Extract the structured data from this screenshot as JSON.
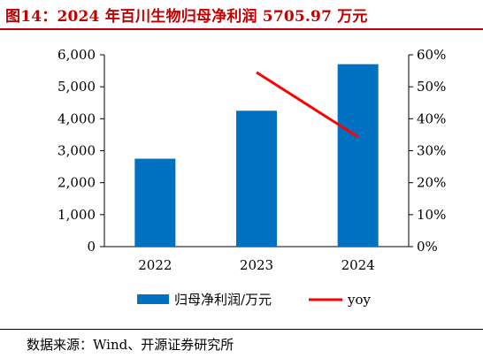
{
  "title": "图14：2024 年百川生物归母净利润 5705.97 万元",
  "source": "数据来源：Wind、开源证券研究所",
  "colors": {
    "title": "#c00000",
    "bar": "#0070c0",
    "line": "#ff0000"
  },
  "chart_data": {
    "type": "bar",
    "categories": [
      "2022",
      "2023",
      "2024"
    ],
    "series": [
      {
        "name": "归母净利润/万元",
        "type": "bar",
        "axis": "left",
        "values": [
          2750,
          4250,
          5706
        ]
      },
      {
        "name": "yoy",
        "type": "line",
        "axis": "right",
        "values": [
          null,
          54.5,
          34.3
        ]
      }
    ],
    "y_left": {
      "min": 0,
      "max": 6000,
      "ticks": [
        "0",
        "1,000",
        "2,000",
        "3,000",
        "4,000",
        "5,000",
        "6,000"
      ]
    },
    "y_right": {
      "min": 0,
      "max": 60,
      "ticks": [
        "0%",
        "10%",
        "20%",
        "30%",
        "40%",
        "50%",
        "60%"
      ]
    },
    "grid": false,
    "legend": "bottom"
  }
}
